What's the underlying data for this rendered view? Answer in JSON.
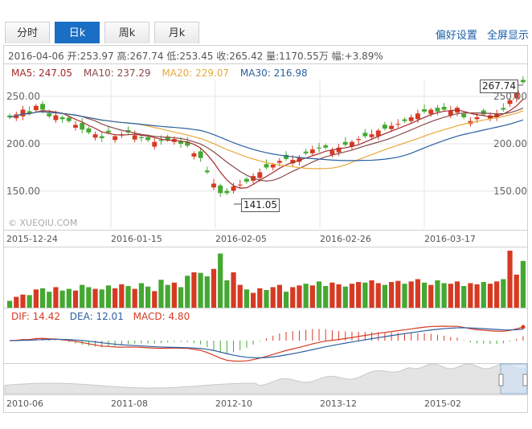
{
  "tabs": [
    {
      "label": "分时",
      "active": false
    },
    {
      "label": "日k",
      "active": true
    },
    {
      "label": "周k",
      "active": false
    },
    {
      "label": "月k",
      "active": false
    }
  ],
  "links": {
    "adjust": "偏好设置",
    "fullscreen": "全屏显示"
  },
  "info": {
    "date": "2016-04-06",
    "open_label": "开:",
    "open": "253.97",
    "high_label": "高:",
    "high": "267.74",
    "low_label": "低:",
    "low": "253.45",
    "close_label": "收:",
    "close": "265.42",
    "vol_label": "量:",
    "vol": "1170.55万",
    "chg_label": "幅:",
    "chg": "+3.89%"
  },
  "ma": {
    "ma5": "MA5: 247.05",
    "ma10": "MA10: 237.29",
    "ma20": "MA20: 229.07",
    "ma30": "MA30: 216.98"
  },
  "macd": {
    "dif": "DIF: 14.42",
    "dea": "DEA: 12.01",
    "macd": "MACD: 4.80"
  },
  "watermark": "© XUEQIU.COM",
  "colors": {
    "up": "#d63a22",
    "down": "#44a832",
    "ma5": "#a52a2a",
    "ma10": "#8b4a4a",
    "ma20": "#e8a93a",
    "ma30": "#2b5fa0"
  },
  "chart_data": {
    "type": "candlestick",
    "y_ticks": [
      "250.00",
      "200.00",
      "150.00"
    ],
    "y_tick_values": [
      250,
      200,
      150
    ],
    "ylim": [
      126,
      268
    ],
    "x_labels": [
      "2015-12-24",
      "2016-01-15",
      "2016-02-05",
      "2016-02-26",
      "2016-03-17"
    ],
    "high_label": "267.74",
    "low_label": "141.05",
    "close": [
      228,
      231,
      236,
      232,
      240,
      236,
      229,
      230,
      226,
      224,
      220,
      215,
      212,
      210,
      206,
      212,
      208,
      210,
      212,
      209,
      206,
      204,
      202,
      203,
      204,
      205,
      200,
      198,
      190,
      185,
      170,
      158,
      148,
      148,
      155,
      157,
      160,
      166,
      170,
      175,
      178,
      182,
      184,
      183,
      186,
      190,
      194,
      195,
      196,
      193,
      196,
      199,
      202,
      205,
      208,
      210,
      214,
      216,
      219,
      221,
      224,
      228,
      232,
      234,
      236,
      234,
      236,
      235,
      238,
      228,
      224,
      228,
      231,
      230,
      232,
      236,
      246,
      256,
      265
    ],
    "volume": [
      0.12,
      0.19,
      0.23,
      0.22,
      0.32,
      0.34,
      0.28,
      0.36,
      0.3,
      0.33,
      0.3,
      0.4,
      0.36,
      0.33,
      0.32,
      0.39,
      0.34,
      0.41,
      0.38,
      0.33,
      0.43,
      0.37,
      0.29,
      0.49,
      0.4,
      0.44,
      0.36,
      0.56,
      0.62,
      0.61,
      0.55,
      0.68,
      0.95,
      0.48,
      0.62,
      0.4,
      0.32,
      0.26,
      0.34,
      0.31,
      0.36,
      0.4,
      0.28,
      0.36,
      0.39,
      0.42,
      0.39,
      0.46,
      0.38,
      0.44,
      0.41,
      0.37,
      0.42,
      0.45,
      0.44,
      0.48,
      0.43,
      0.4,
      0.45,
      0.47,
      0.42,
      0.46,
      0.5,
      0.44,
      0.4,
      0.48,
      0.43,
      0.42,
      0.46,
      0.38,
      0.43,
      0.41,
      0.45,
      0.42,
      0.46,
      0.5,
      1.0,
      0.58,
      0.82
    ],
    "timeline_labels": [
      "2010-06",
      "2011-08",
      "2012-10",
      "2013-12",
      "2015-02"
    ]
  }
}
